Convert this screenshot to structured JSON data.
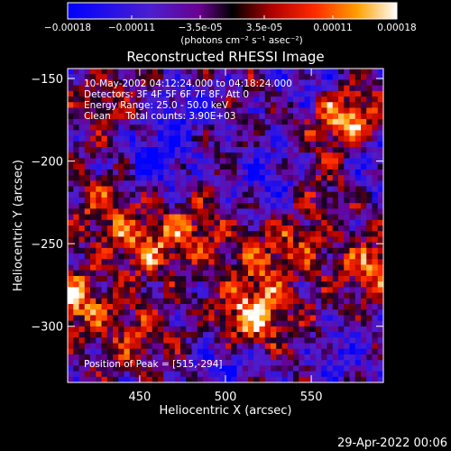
{
  "chart_data": {
    "type": "heatmap",
    "title": "Reconstructed RHESSI Image",
    "xlabel": "Heliocentric X (arcsec)",
    "ylabel": "Heliocentric Y (arcsec)",
    "xlim": [
      408,
      592
    ],
    "ylim": [
      -334,
      -144
    ],
    "x_ticks": [
      450,
      500,
      550
    ],
    "y_ticks": [
      -150,
      -200,
      -250,
      -300
    ],
    "info_lines": [
      "10-May-2002 04:12:24.000 to 04:18:24.000",
      "Detectors: 3F 4F 5F 6F 7F 8F, Att 0",
      "Energy Range: 25.0 - 50.0 keV",
      "Clean     Total counts: 3.90E+03"
    ],
    "peak_label": "Position of Peak = [515,-294]",
    "peak": {
      "x": 515,
      "y": -294
    },
    "colorbar": {
      "label": "(photons cm⁻² s⁻¹ asec⁻²)",
      "range": [
        -0.00018,
        0.00018
      ],
      "ticks": [
        {
          "value": -0.00018,
          "label": "-0.00018"
        },
        {
          "value": -0.00011,
          "label": "-0.00011"
        },
        {
          "value": -3.5e-05,
          "label": "-3.5e-05"
        },
        {
          "value": 3.5e-05,
          "label": "3.5e-05"
        },
        {
          "value": 0.00011,
          "label": "0.00011"
        },
        {
          "value": 0.00018,
          "label": "0.00018"
        }
      ]
    },
    "hotspots": [
      {
        "x": 570,
        "y": -175,
        "value": 0.00018
      },
      {
        "x": 411,
        "y": -285,
        "value": 0.00017
      },
      {
        "x": 515,
        "y": -294,
        "value": 0.00018
      },
      {
        "x": 452,
        "y": -252,
        "value": 0.00012
      },
      {
        "x": 480,
        "y": -245,
        "value": 0.00011
      },
      {
        "x": 430,
        "y": -230,
        "value": 0.0001
      },
      {
        "x": 448,
        "y": -305,
        "value": 9e-05
      },
      {
        "x": 540,
        "y": -250,
        "value": 8e-05
      },
      {
        "x": 585,
        "y": -265,
        "value": 0.00013
      },
      {
        "x": 430,
        "y": -165,
        "value": 6e-05
      },
      {
        "x": 560,
        "y": -215,
        "value": 6e-05
      },
      {
        "x": 520,
        "y": -265,
        "value": 9e-05
      },
      {
        "x": 555,
        "y": -305,
        "value": 6e-05
      }
    ],
    "coldspots": [
      {
        "x": 460,
        "y": -200,
        "value": -0.00012
      },
      {
        "x": 475,
        "y": -170,
        "value": -0.0001
      },
      {
        "x": 525,
        "y": -210,
        "value": -0.00011
      },
      {
        "x": 565,
        "y": -315,
        "value": -0.00012
      },
      {
        "x": 545,
        "y": -150,
        "value": -9e-05
      },
      {
        "x": 500,
        "y": -325,
        "value": -9e-05
      },
      {
        "x": 585,
        "y": -200,
        "value": -9e-05
      }
    ]
  },
  "footer_date": "29-Apr-2022 00:06"
}
